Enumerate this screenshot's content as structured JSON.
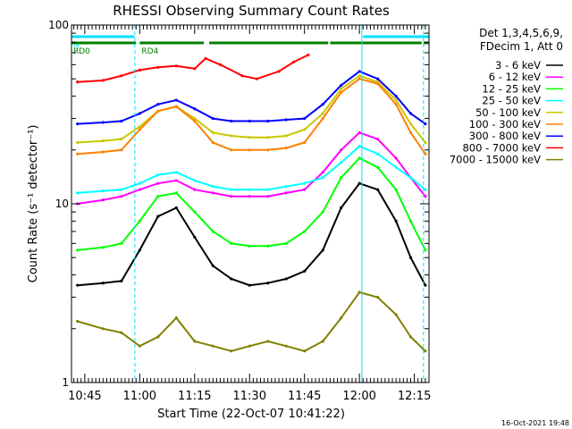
{
  "chart_data": {
    "type": "line",
    "title": "RHESSI Observing Summary Count Rates",
    "xlabel": "Start Time (22-Oct-07 10:41:22)",
    "ylabel": "Count Rate (s⁻¹ detector⁻¹)",
    "yscale": "log",
    "ylim": [
      1,
      100
    ],
    "xlim": [
      "10:41:22",
      "12:19:00"
    ],
    "xticks": [
      "10:45",
      "11:00",
      "11:15",
      "11:30",
      "11:45",
      "12:00",
      "12:15"
    ],
    "yticks": [
      "1",
      "10",
      "100"
    ],
    "legend_header": [
      "Det 1,3,4,5,6,9,",
      "FDecim 1, Att 0"
    ],
    "legend_position": "right",
    "series": [
      {
        "name": "3 - 6 keV",
        "color": "#000000",
        "x": [
          "10:43",
          "10:50",
          "10:55",
          "11:00",
          "11:05",
          "11:10",
          "11:15",
          "11:20",
          "11:25",
          "11:30",
          "11:35",
          "11:40",
          "11:45",
          "11:50",
          "11:55",
          "12:00",
          "12:05",
          "12:10",
          "12:14",
          "12:18"
        ],
        "values": [
          3.5,
          3.6,
          3.7,
          5.5,
          8.5,
          9.5,
          6.5,
          4.5,
          3.8,
          3.5,
          3.6,
          3.8,
          4.2,
          5.5,
          9.5,
          13,
          12,
          8,
          5,
          3.5
        ]
      },
      {
        "name": "6 - 12 keV",
        "color": "#ff00ff",
        "x": [
          "10:43",
          "10:50",
          "10:55",
          "11:00",
          "11:05",
          "11:10",
          "11:15",
          "11:20",
          "11:25",
          "11:30",
          "11:35",
          "11:40",
          "11:45",
          "11:50",
          "11:55",
          "12:00",
          "12:05",
          "12:10",
          "12:14",
          "12:18"
        ],
        "values": [
          10,
          10.5,
          11,
          12,
          13,
          13.5,
          12,
          11.5,
          11,
          11,
          11,
          11.5,
          12,
          15,
          20,
          25,
          23,
          18,
          14,
          11
        ]
      },
      {
        "name": "12 - 25 keV",
        "color": "#00ff00",
        "x": [
          "10:43",
          "10:50",
          "10:55",
          "11:00",
          "11:05",
          "11:10",
          "11:15",
          "11:20",
          "11:25",
          "11:30",
          "11:35",
          "11:40",
          "11:45",
          "11:50",
          "11:55",
          "12:00",
          "12:05",
          "12:10",
          "12:14",
          "12:18"
        ],
        "values": [
          5.5,
          5.7,
          6,
          8,
          11,
          11.5,
          9,
          7,
          6,
          5.8,
          5.8,
          6,
          7,
          9,
          14,
          18,
          16,
          12,
          8,
          5.5
        ]
      },
      {
        "name": "25 - 50 keV",
        "color": "#00ffff",
        "x": [
          "10:43",
          "10:50",
          "10:55",
          "11:00",
          "11:05",
          "11:10",
          "11:15",
          "11:20",
          "11:25",
          "11:30",
          "11:35",
          "11:40",
          "11:45",
          "11:50",
          "11:55",
          "12:00",
          "12:05",
          "12:10",
          "12:14",
          "12:18"
        ],
        "values": [
          11.5,
          11.8,
          12,
          13,
          14.5,
          15,
          13.5,
          12.5,
          12,
          12,
          12,
          12.5,
          13,
          14,
          17,
          21,
          19,
          16,
          14,
          12
        ]
      },
      {
        "name": "50 - 100 keV",
        "color": "#c8c800",
        "x": [
          "10:43",
          "10:50",
          "10:55",
          "11:00",
          "11:05",
          "11:10",
          "11:15",
          "11:20",
          "11:25",
          "11:30",
          "11:35",
          "11:40",
          "11:45",
          "11:50",
          "11:55",
          "12:00",
          "12:05",
          "12:10",
          "12:14",
          "12:18"
        ],
        "values": [
          22,
          22.5,
          23,
          27,
          33,
          35,
          30,
          25,
          24,
          23.5,
          23.5,
          24,
          26,
          32,
          44,
          52,
          48,
          38,
          28,
          22
        ]
      },
      {
        "name": "100 - 300 keV",
        "color": "#ff8000",
        "x": [
          "10:43",
          "10:50",
          "10:55",
          "11:00",
          "11:05",
          "11:10",
          "11:15",
          "11:20",
          "11:25",
          "11:30",
          "11:35",
          "11:40",
          "11:45",
          "11:50",
          "11:55",
          "12:00",
          "12:05",
          "12:10",
          "12:14",
          "12:18"
        ],
        "values": [
          19,
          19.5,
          20,
          26,
          33,
          35,
          29,
          22,
          20,
          20,
          20,
          20.5,
          22,
          30,
          42,
          50,
          47,
          36,
          25,
          19
        ]
      },
      {
        "name": "300 - 800 keV",
        "color": "#0000ff",
        "x": [
          "10:43",
          "10:50",
          "10:55",
          "11:00",
          "11:05",
          "11:10",
          "11:15",
          "11:20",
          "11:25",
          "11:30",
          "11:35",
          "11:40",
          "11:45",
          "11:50",
          "11:55",
          "12:00",
          "12:05",
          "12:10",
          "12:14",
          "12:18"
        ],
        "values": [
          28,
          28.5,
          29,
          32,
          36,
          38,
          34,
          30,
          29,
          29,
          29,
          29.5,
          30,
          36,
          46,
          55,
          50,
          40,
          32,
          28
        ]
      },
      {
        "name": "800 - 7000 keV",
        "color": "#ff0000",
        "x": [
          "10:43",
          "10:50",
          "10:55",
          "11:00",
          "11:05",
          "11:10",
          "11:15",
          "11:18",
          "11:22",
          "11:28",
          "11:32",
          "11:38",
          "11:42",
          "11:46"
        ],
        "values": [
          48,
          49,
          52,
          56,
          58,
          59,
          57,
          65,
          60,
          52,
          50,
          55,
          62,
          68
        ]
      },
      {
        "name": "7000 - 15000 keV",
        "color": "#808000",
        "x": [
          "10:43",
          "10:50",
          "10:55",
          "11:00",
          "11:05",
          "11:10",
          "11:15",
          "11:20",
          "11:25",
          "11:30",
          "11:35",
          "11:40",
          "11:45",
          "11:50",
          "11:55",
          "12:00",
          "12:05",
          "12:10",
          "12:14",
          "12:18"
        ],
        "values": [
          2.2,
          2.0,
          1.9,
          1.6,
          1.8,
          2.3,
          1.7,
          1.6,
          1.5,
          1.6,
          1.7,
          1.6,
          1.5,
          1.7,
          2.3,
          3.2,
          3.0,
          2.4,
          1.8,
          1.5
        ]
      }
    ],
    "flags": [
      {
        "label": "N",
        "color": "#00e0ff",
        "start": "10:41:22",
        "end": "10:58:30"
      },
      {
        "label": "",
        "color": "#00e0ff",
        "start": "12:01:00",
        "end": "12:19:00"
      },
      {
        "label": "RD0",
        "color": "#008000",
        "start": "10:41:22",
        "end": "10:59:00"
      },
      {
        "label": "RD4",
        "color": "#008000",
        "start": "11:00:00",
        "end": "11:17:30"
      },
      {
        "label": "",
        "color": "#008000",
        "start": "11:19:00",
        "end": "11:51:30"
      },
      {
        "label": "",
        "color": "#008000",
        "start": "11:52:00",
        "end": "12:17:00"
      },
      {
        "label": "",
        "color": "#008000",
        "start": "12:17:30",
        "end": "12:19:00"
      }
    ],
    "vertical_lines": [
      {
        "x": "10:58:40",
        "color": "#00e0ff",
        "style": "dashed"
      },
      {
        "x": "12:00:40",
        "color": "#00e0ff",
        "style": "solid"
      },
      {
        "x": "12:17:30",
        "color": "#00e0ff",
        "style": "dashed"
      }
    ]
  },
  "footer": {
    "date_stamp": "16-Oct-2021 19:48"
  }
}
